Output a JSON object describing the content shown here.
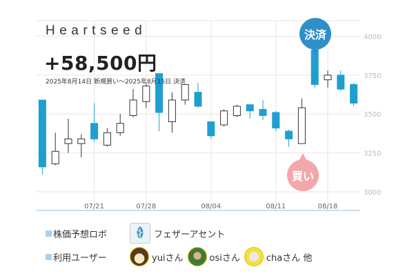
{
  "header": {
    "company": "Heartseed",
    "profit": "+58,500円",
    "period": "2025年8月14日 新規買い〜2025年8月15日 決済"
  },
  "markers": {
    "sell_label": "決済",
    "buy_label": "買い",
    "sell_color": "#2e8fc9",
    "buy_color": "#f3a7ac"
  },
  "footer": {
    "robot_label": "株価予想ロボ",
    "robot_name": "フェザーアセント",
    "robot_icon": "feather-icon",
    "users_label": "利用ユーザー",
    "users": [
      {
        "name": "yuiさん"
      },
      {
        "name": "osiさん"
      },
      {
        "name": "chaさん 他"
      }
    ]
  },
  "chart_data": {
    "type": "candlestick",
    "y_ticks": [
      3000,
      3250,
      3500,
      3750,
      4000
    ],
    "ylim": [
      2880,
      4100
    ],
    "x_ticks": [
      "07/21",
      "07/28",
      "08/04",
      "08/11",
      "08/18"
    ],
    "x_tick_candle_index": [
      4,
      8,
      13,
      18,
      22
    ],
    "up_color": "#ffffff",
    "down_color": "#1e9fd0",
    "candles": [
      {
        "o": 3590,
        "h": 3590,
        "l": 3110,
        "c": 3160
      },
      {
        "o": 3180,
        "h": 3380,
        "l": 3170,
        "c": 3260
      },
      {
        "o": 3310,
        "h": 3470,
        "l": 3250,
        "c": 3340
      },
      {
        "o": 3310,
        "h": 3370,
        "l": 3220,
        "c": 3340
      },
      {
        "o": 3440,
        "h": 3570,
        "l": 3320,
        "c": 3340
      },
      {
        "o": 3300,
        "h": 3410,
        "l": 3290,
        "c": 3380
      },
      {
        "o": 3380,
        "h": 3500,
        "l": 3360,
        "c": 3440
      },
      {
        "o": 3490,
        "h": 3660,
        "l": 3480,
        "c": 3590
      },
      {
        "o": 3580,
        "h": 3700,
        "l": 3540,
        "c": 3680
      },
      {
        "o": 3760,
        "h": 3760,
        "l": 3390,
        "c": 3510
      },
      {
        "o": 3450,
        "h": 3640,
        "l": 3380,
        "c": 3590
      },
      {
        "o": 3590,
        "h": 3690,
        "l": 3560,
        "c": 3690
      },
      {
        "o": 3640,
        "h": 3700,
        "l": 3540,
        "c": 3550
      },
      {
        "o": 3450,
        "h": 3450,
        "l": 3340,
        "c": 3360
      },
      {
        "o": 3430,
        "h": 3530,
        "l": 3420,
        "c": 3520
      },
      {
        "o": 3490,
        "h": 3560,
        "l": 3480,
        "c": 3550
      },
      {
        "o": 3560,
        "h": 3560,
        "l": 3470,
        "c": 3520
      },
      {
        "o": 3530,
        "h": 3590,
        "l": 3460,
        "c": 3490
      },
      {
        "o": 3510,
        "h": 3520,
        "l": 3390,
        "c": 3410
      },
      {
        "o": 3390,
        "h": 3400,
        "l": 3290,
        "c": 3340
      },
      {
        "o": 3310,
        "h": 3600,
        "l": 3310,
        "c": 3540
      },
      {
        "o": 3910,
        "h": 3930,
        "l": 3670,
        "c": 3690
      },
      {
        "o": 3720,
        "h": 3780,
        "l": 3670,
        "c": 3750
      },
      {
        "o": 3750,
        "h": 3780,
        "l": 3650,
        "c": 3660
      },
      {
        "o": 3690,
        "h": 3700,
        "l": 3550,
        "c": 3570
      }
    ]
  }
}
